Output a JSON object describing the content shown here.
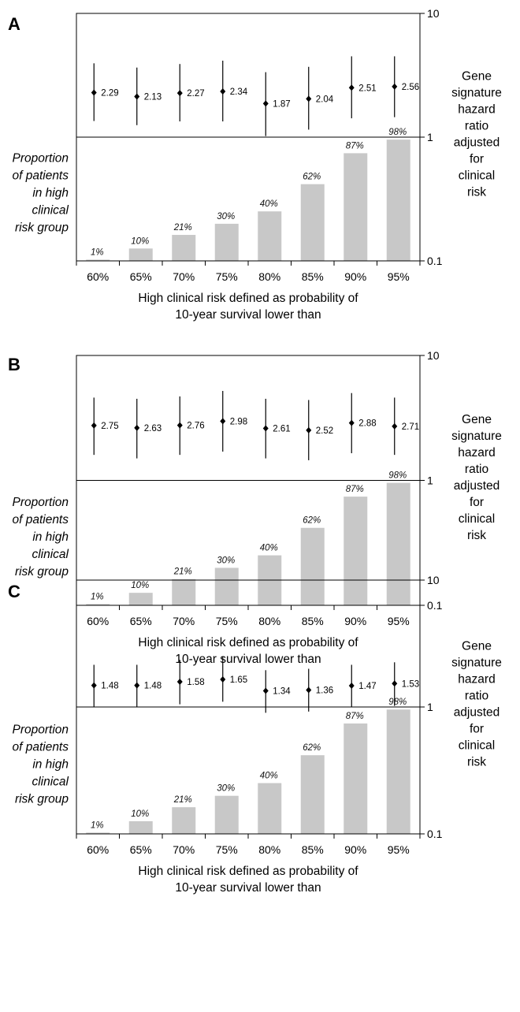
{
  "chart_data": [
    {
      "type": "bar",
      "panel": "A",
      "categories": [
        "60%",
        "65%",
        "70%",
        "75%",
        "80%",
        "85%",
        "90%",
        "95%"
      ],
      "bar_series": {
        "name": "Proportion of patients in high clinical risk group",
        "labels": [
          "1%",
          "10%",
          "21%",
          "30%",
          "40%",
          "62%",
          "87%",
          "98%"
        ],
        "values": [
          1,
          10,
          21,
          30,
          40,
          62,
          87,
          98
        ]
      },
      "hazard_ratio_series": {
        "name": "Gene signature hazard ratio adjusted for clinical risk",
        "values": [
          2.29,
          2.13,
          2.27,
          2.34,
          1.87,
          2.04,
          2.51,
          2.56
        ],
        "labels": [
          "2.29",
          "2.13",
          "2.27",
          "2.34",
          "1.87",
          "2.04",
          "2.51",
          "2.56"
        ],
        "ci_low": [
          1.35,
          1.25,
          1.34,
          1.34,
          1.02,
          1.15,
          1.42,
          1.45
        ],
        "ci_high": [
          3.95,
          3.65,
          3.9,
          4.15,
          3.35,
          3.7,
          4.5,
          4.5
        ]
      },
      "xlabel_lines": [
        "High clinical risk defined as probability of",
        "10-year survival lower than"
      ],
      "left_label_lines": [
        "Proportion",
        "of patients",
        "in high",
        "clinical",
        "risk group"
      ],
      "right_label_lines": [
        "Gene",
        "signature",
        "hazard",
        "ratio",
        "adjusted",
        "for",
        "clinical",
        "risk"
      ],
      "right_axis": {
        "scale": "log",
        "ylim": [
          0.1,
          10
        ],
        "tick_labels": [
          "10",
          "1",
          "0.1"
        ]
      }
    },
    {
      "type": "bar",
      "panel": "B",
      "categories": [
        "60%",
        "65%",
        "70%",
        "75%",
        "80%",
        "85%",
        "90%",
        "95%"
      ],
      "bar_series": {
        "name": "Proportion of patients in high clinical risk group",
        "labels": [
          "1%",
          "10%",
          "21%",
          "30%",
          "40%",
          "62%",
          "87%",
          "98%"
        ],
        "values": [
          1,
          10,
          21,
          30,
          40,
          62,
          87,
          98
        ]
      },
      "hazard_ratio_series": {
        "name": "Gene signature hazard ratio adjusted for clinical risk",
        "values": [
          2.75,
          2.63,
          2.76,
          2.98,
          2.61,
          2.52,
          2.88,
          2.71
        ],
        "labels": [
          "2.75",
          "2.63",
          "2.76",
          "2.98",
          "2.61",
          "2.52",
          "2.88",
          "2.71"
        ],
        "ci_low": [
          1.6,
          1.5,
          1.6,
          1.7,
          1.5,
          1.45,
          1.65,
          1.6
        ],
        "ci_high": [
          4.6,
          4.5,
          4.7,
          5.2,
          4.5,
          4.4,
          5.0,
          4.6
        ]
      },
      "xlabel_lines": [
        "High clinical risk defined as probability of",
        "10-year survival lower than"
      ],
      "left_label_lines": [
        "Proportion",
        "of patients",
        "in high",
        "clinical",
        "risk group"
      ],
      "right_label_lines": [
        "Gene",
        "signature",
        "hazard",
        "ratio",
        "adjusted",
        "for",
        "clinical",
        "risk"
      ],
      "right_axis": {
        "scale": "log",
        "ylim": [
          0.1,
          10
        ],
        "tick_labels": [
          "10",
          "1",
          "0.1"
        ]
      }
    },
    {
      "type": "bar",
      "panel": "C",
      "categories": [
        "60%",
        "65%",
        "70%",
        "75%",
        "80%",
        "85%",
        "90%",
        "95%"
      ],
      "bar_series": {
        "name": "Proportion of patients in high clinical risk group",
        "labels": [
          "1%",
          "10%",
          "21%",
          "30%",
          "40%",
          "62%",
          "87%",
          "98%"
        ],
        "values": [
          1,
          10,
          21,
          30,
          40,
          62,
          87,
          98
        ]
      },
      "hazard_ratio_series": {
        "name": "Gene signature hazard ratio adjusted for clinical risk",
        "values": [
          1.48,
          1.48,
          1.58,
          1.65,
          1.34,
          1.36,
          1.47,
          1.53
        ],
        "labels": [
          "1.48",
          "1.48",
          "1.58",
          "1.65",
          "1.34",
          "1.36",
          "1.47",
          "1.53"
        ],
        "ci_low": [
          1.0,
          1.0,
          1.05,
          1.1,
          0.9,
          0.92,
          1.0,
          1.02
        ],
        "ci_high": [
          2.15,
          2.15,
          2.35,
          2.5,
          1.95,
          2.0,
          2.15,
          2.25
        ]
      },
      "xlabel_lines": [
        "High clinical risk defined as probability of",
        "10-year survival lower than"
      ],
      "left_label_lines": [
        "Proportion",
        "of patients",
        "in high",
        "clinical",
        "risk group"
      ],
      "right_label_lines": [
        "Gene",
        "signature",
        "hazard",
        "ratio",
        "adjusted",
        "for",
        "clinical",
        "risk"
      ],
      "right_axis": {
        "scale": "log",
        "ylim": [
          0.1,
          10
        ],
        "tick_labels": [
          "10",
          "1",
          "0.1"
        ]
      }
    }
  ],
  "colors": {
    "bar": "#c8c8c8",
    "line": "#000000"
  }
}
